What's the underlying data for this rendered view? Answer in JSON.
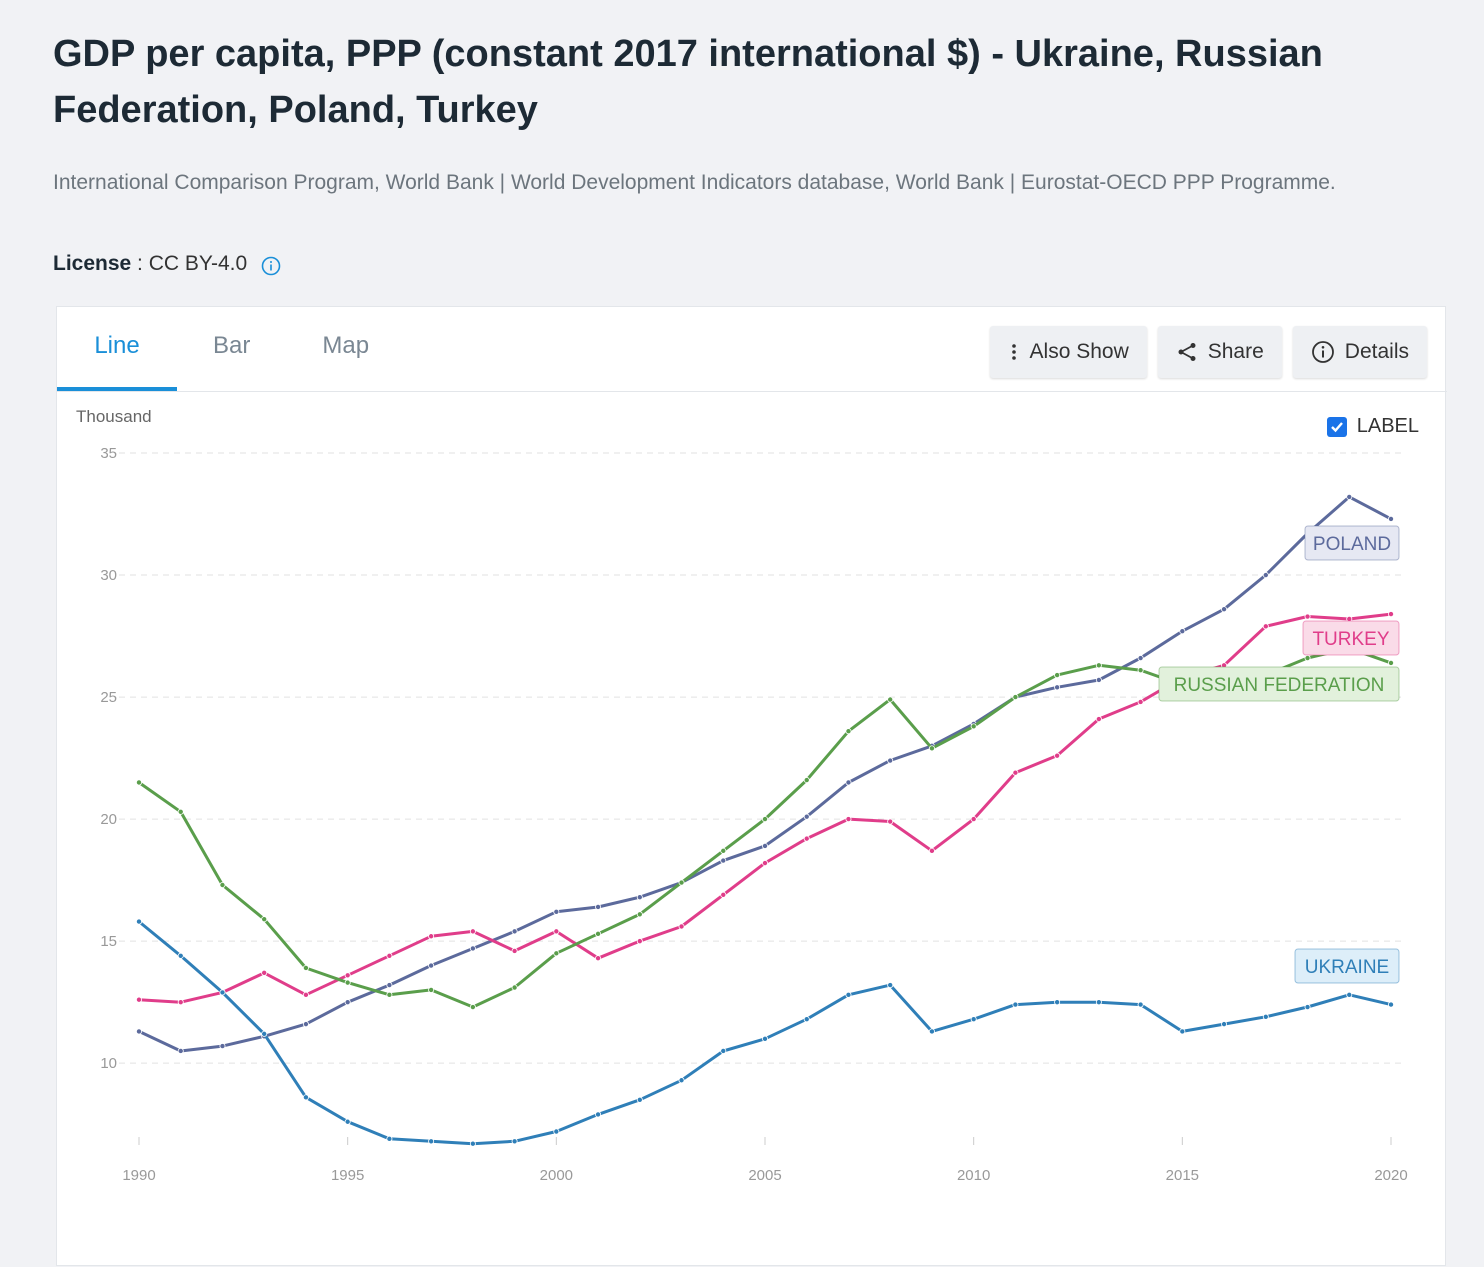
{
  "header": {
    "title": "GDP per capita, PPP (constant 2017 international $) - Ukraine, Russian Federation, Poland, Turkey",
    "source": "International Comparison Program, World Bank | World Development Indicators database, World Bank | Eurostat-OECD PPP Programme.",
    "license_label": "License",
    "license_value": " : CC BY-4.0",
    "info_icon": "info-icon"
  },
  "tabs": [
    {
      "label": "Line",
      "active": true
    },
    {
      "label": "Bar",
      "active": false
    },
    {
      "label": "Map",
      "active": false
    }
  ],
  "actions": {
    "also_show": "Also Show",
    "share": "Share",
    "details": "Details",
    "icons": [
      "vertical-dots-icon",
      "share-icon",
      "info-icon"
    ]
  },
  "label_toggle": {
    "label": "LABEL",
    "checked": true
  },
  "chart_data": {
    "type": "line",
    "unit_label": "Thousand",
    "x": [
      1990,
      1991,
      1992,
      1993,
      1994,
      1995,
      1996,
      1997,
      1998,
      1999,
      2000,
      2001,
      2002,
      2003,
      2004,
      2005,
      2006,
      2007,
      2008,
      2009,
      2010,
      2011,
      2012,
      2013,
      2014,
      2015,
      2016,
      2017,
      2018,
      2019,
      2020
    ],
    "xticks": [
      1990,
      1995,
      2000,
      2005,
      2010,
      2015,
      2020
    ],
    "yticks": [
      10,
      15,
      20,
      25,
      30,
      35
    ],
    "ylim": [
      5.5,
      35
    ],
    "xlim": [
      1990,
      2020
    ],
    "grid": true,
    "series": [
      {
        "name": "POLAND",
        "color": "#5c6a9c",
        "label_bg": "#e6e8f3",
        "values": [
          11.3,
          10.5,
          10.7,
          11.1,
          11.6,
          12.5,
          13.2,
          14.0,
          14.7,
          15.4,
          16.2,
          16.4,
          16.8,
          17.4,
          18.3,
          18.9,
          20.1,
          21.5,
          22.4,
          23.0,
          23.9,
          25.0,
          25.4,
          25.7,
          26.6,
          27.7,
          28.6,
          30.0,
          31.7,
          33.2,
          32.3
        ]
      },
      {
        "name": "TURKEY",
        "color": "#e03d8a",
        "label_bg": "#fadbe8",
        "values": [
          12.6,
          12.5,
          12.9,
          13.7,
          12.8,
          13.6,
          14.4,
          15.2,
          15.4,
          14.6,
          15.4,
          14.3,
          15.0,
          15.6,
          16.9,
          18.2,
          19.2,
          20.0,
          19.9,
          18.7,
          20.0,
          21.9,
          22.6,
          24.1,
          24.8,
          25.8,
          26.3,
          27.9,
          28.3,
          28.2,
          28.4
        ]
      },
      {
        "name": "RUSSIAN FEDERATION",
        "color": "#5a9e4b",
        "label_bg": "#e2f1dc",
        "values": [
          21.5,
          20.3,
          17.3,
          15.9,
          13.9,
          13.3,
          12.8,
          13.0,
          12.3,
          13.1,
          14.5,
          15.3,
          16.1,
          17.4,
          18.7,
          20.0,
          21.6,
          23.6,
          24.9,
          22.9,
          23.8,
          25.0,
          25.9,
          26.3,
          26.1,
          25.5,
          25.5,
          25.9,
          26.6,
          27.0,
          26.4
        ]
      },
      {
        "name": "UKRAINE",
        "color": "#2f7fb8",
        "label_bg": "#ddeef9",
        "values": [
          15.8,
          14.4,
          12.9,
          11.2,
          8.6,
          7.6,
          6.9,
          6.8,
          6.7,
          6.8,
          7.2,
          7.9,
          8.5,
          9.3,
          10.5,
          11.0,
          11.8,
          12.8,
          13.2,
          11.3,
          11.8,
          12.4,
          12.5,
          12.5,
          12.4,
          11.3,
          11.6,
          11.9,
          12.3,
          12.8,
          12.4
        ]
      }
    ]
  }
}
